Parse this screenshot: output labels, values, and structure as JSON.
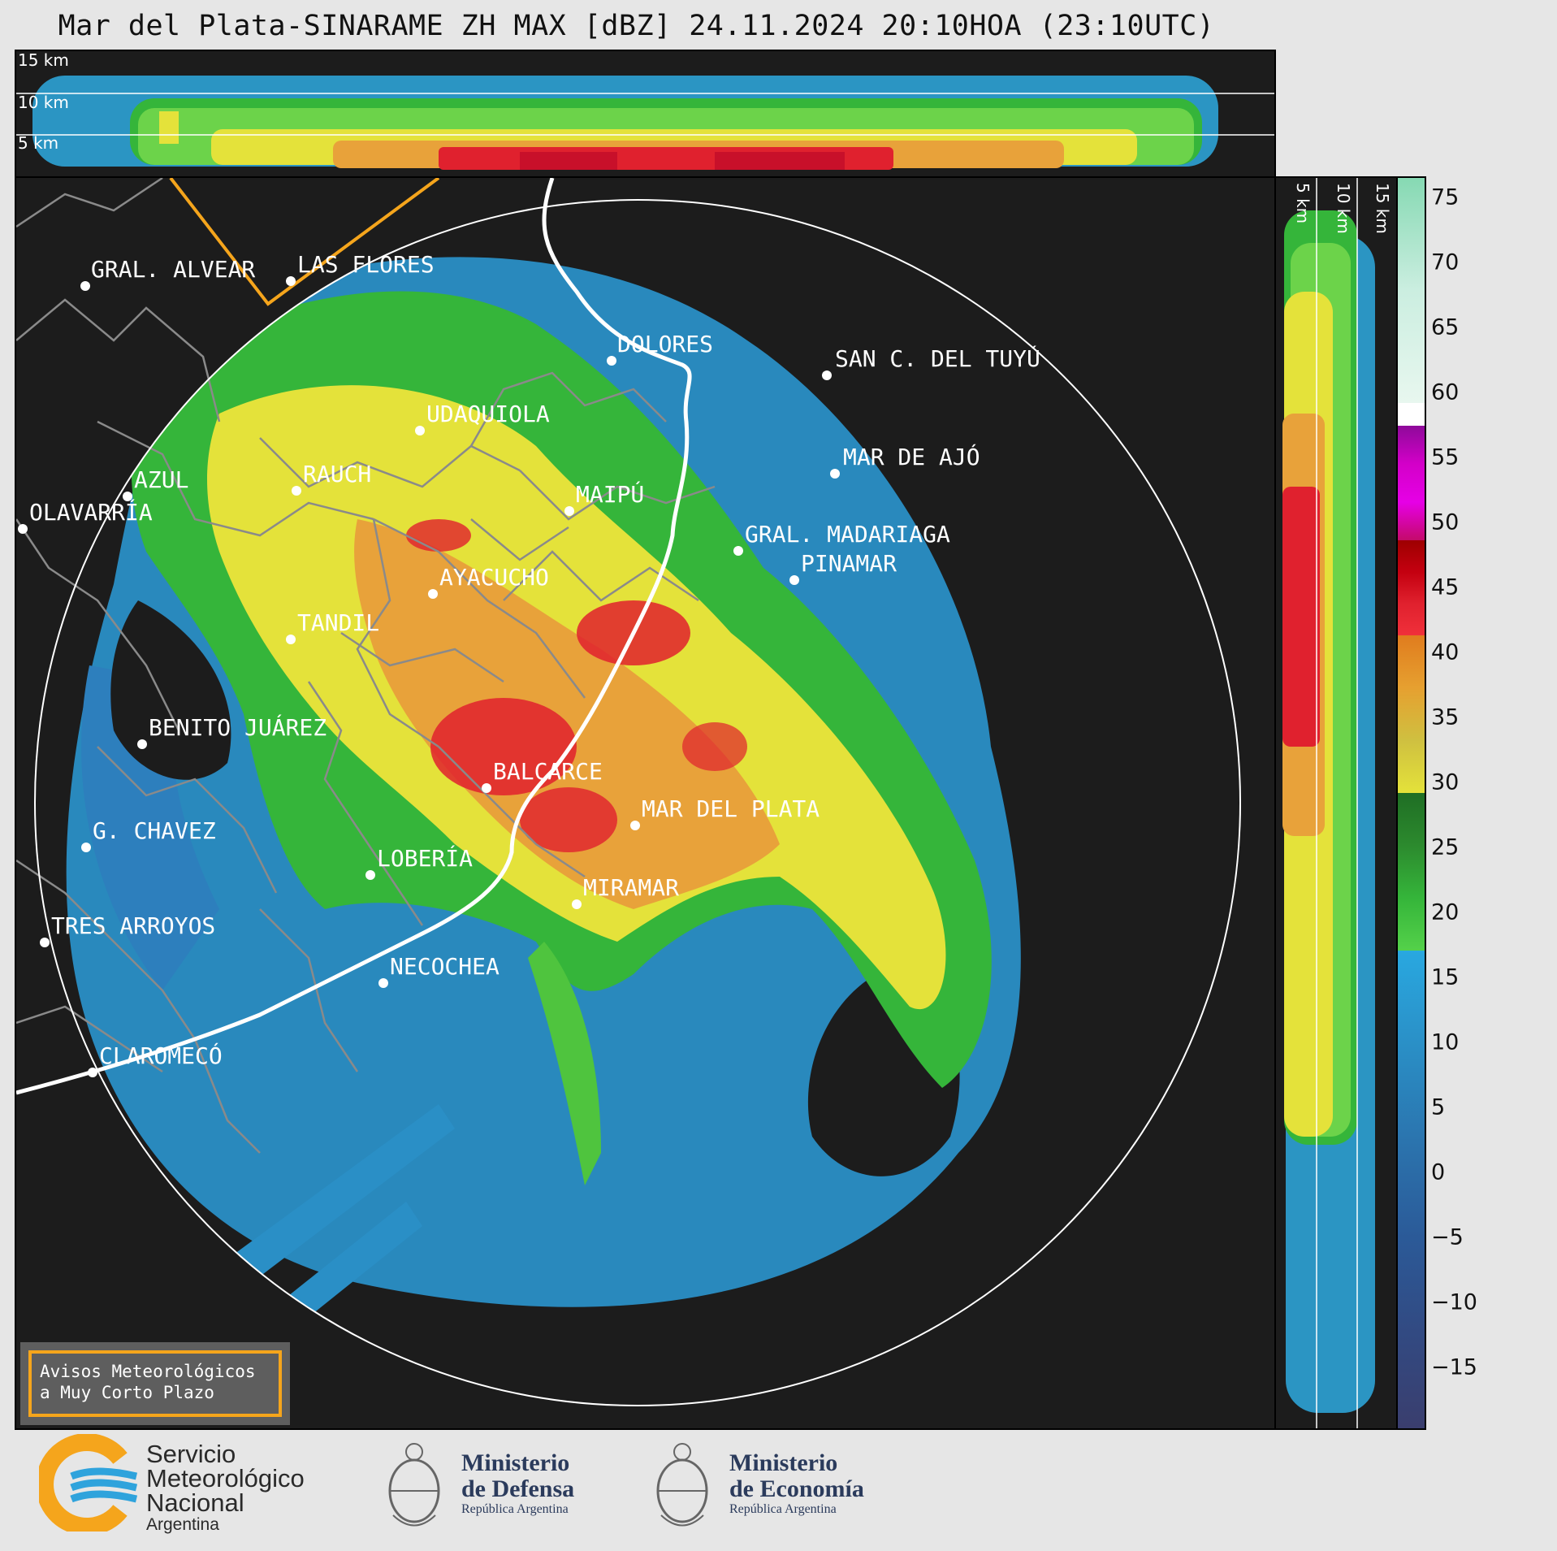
{
  "title": "Mar del Plata-SINARAME ZH MAX [dBZ] 24.11.2024 20:10HOA (23:10UTC)",
  "top_panel": {
    "height_labels": [
      "15 km",
      "10 km",
      "5 km"
    ]
  },
  "side_panel": {
    "height_labels": [
      "5 km",
      "10 km",
      "15 km"
    ]
  },
  "colorbar": {
    "ticks": [
      "75",
      "70",
      "65",
      "60",
      "55",
      "50",
      "45",
      "40",
      "35",
      "30",
      "25",
      "20",
      "15",
      "10",
      "5",
      "0",
      "−5",
      "−10",
      "−15"
    ],
    "range": [
      -20,
      77
    ],
    "segments": [
      {
        "from": -20,
        "to": 17.5,
        "color": "scale-blue"
      },
      {
        "from": 17.5,
        "to": 30,
        "color": "scale-green"
      },
      {
        "from": 30,
        "to": 42.5,
        "color": "scale-yellow-orange"
      },
      {
        "from": 42.5,
        "to": 50,
        "color": "scale-red"
      },
      {
        "from": 50,
        "to": 58,
        "color": "scale-magenta"
      },
      {
        "from": 58,
        "to": 77,
        "color": "scale-white-teal"
      }
    ]
  },
  "cities": [
    {
      "name": "GRAL. ALVEAR"
    },
    {
      "name": "LAS FLORES"
    },
    {
      "name": "DOLORES"
    },
    {
      "name": "SAN C. DEL TUYÚ"
    },
    {
      "name": "MAR DE AJÓ"
    },
    {
      "name": "UDAQUIOLA"
    },
    {
      "name": "RAUCH"
    },
    {
      "name": "AZUL"
    },
    {
      "name": "OLAVARRÍA"
    },
    {
      "name": "MAIPÚ"
    },
    {
      "name": "GRAL. MADARIAGA"
    },
    {
      "name": "PINAMAR"
    },
    {
      "name": "AYACUCHO"
    },
    {
      "name": "TANDIL"
    },
    {
      "name": "BENITO JUÁREZ"
    },
    {
      "name": "BALCARCE"
    },
    {
      "name": "MAR DEL PLATA"
    },
    {
      "name": "G. CHAVEZ"
    },
    {
      "name": "LOBERÍA"
    },
    {
      "name": "MIRAMAR"
    },
    {
      "name": "TRES ARROYOS"
    },
    {
      "name": "NECOCHEA"
    },
    {
      "name": "CLAROMECÓ"
    }
  ],
  "notice": {
    "line1": "Avisos Meteorológicos",
    "line2": "a Muy Corto Plazo"
  },
  "footer": {
    "smn": {
      "line1": "Servicio",
      "line2": "Meteorológico",
      "line3": "Nacional",
      "country": "Argentina"
    },
    "defensa": {
      "line1": "Ministerio",
      "line2": "de Defensa",
      "sub": "República Argentina"
    },
    "economia": {
      "line1": "Ministerio",
      "line2": "de Economía",
      "sub": "República Argentina"
    }
  },
  "colors": {
    "background": "#1c1c1c",
    "coast": "#ffffff",
    "boundaries": "#8a8a8a",
    "warning_box": "#f5a51c"
  }
}
